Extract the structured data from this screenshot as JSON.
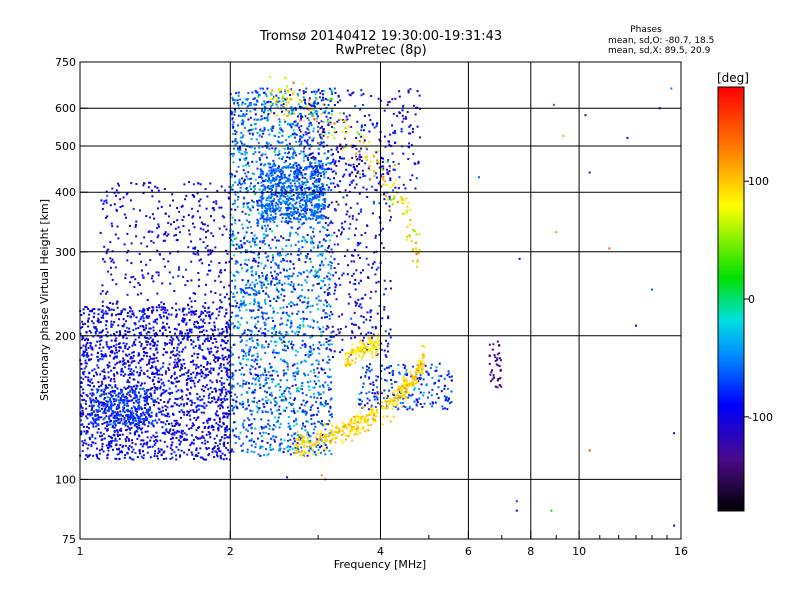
{
  "chart_data": {
    "type": "scatter",
    "title": "Tromsø 20140412 19:30:00-19:31:43",
    "subtitle": "RwPretec (8p)",
    "stats": {
      "heading": "Phases",
      "line1": "mean, sd,O: -80.7, 18.5",
      "line2": "mean, sd,X: 89.5, 20.9"
    },
    "xlabel": "Frequency [MHz]",
    "ylabel": "Stationary phase Virtual Height [km]",
    "x_scale": "log",
    "y_scale": "log",
    "xlim": [
      1,
      16
    ],
    "ylim": [
      75,
      750
    ],
    "xticks": [
      1,
      2,
      4,
      6,
      8,
      10,
      16
    ],
    "xtick_labels": [
      "1",
      "2",
      "4",
      "6",
      "8",
      "10",
      "16"
    ],
    "yticks": [
      75,
      100,
      200,
      300,
      400,
      500,
      600,
      750
    ],
    "ytick_labels": [
      "75",
      "100",
      "200",
      "300",
      "400",
      "500",
      "600",
      "750"
    ],
    "grid": true,
    "colorbar": {
      "label": "[deg]",
      "min": -180,
      "max": 180,
      "ticks": [
        100,
        0,
        -100
      ],
      "tick_labels": [
        "100",
        "0",
        "-100"
      ]
    },
    "clusters": [
      {
        "fmin": 1.0,
        "fmax": 2.0,
        "hmin": 110,
        "hmax": 230,
        "phase": -95,
        "phase_sd": 12,
        "n": 1900
      },
      {
        "fmin": 1.05,
        "fmax": 1.4,
        "hmin": 130,
        "hmax": 155,
        "phase": -70,
        "phase_sd": 10,
        "n": 250
      },
      {
        "fmin": 1.1,
        "fmax": 2.0,
        "hmin": 225,
        "hmax": 420,
        "phase": -100,
        "phase_sd": 10,
        "n": 350
      },
      {
        "fmin": 2.0,
        "fmax": 3.2,
        "hmin": 112,
        "hmax": 660,
        "phase": -60,
        "phase_sd": 25,
        "n": 2200
      },
      {
        "fmin": 2.3,
        "fmax": 3.1,
        "hmin": 350,
        "hmax": 460,
        "phase": -60,
        "phase_sd": 8,
        "n": 500
      },
      {
        "fmin": 2.7,
        "fmax": 4.8,
        "hmin": 400,
        "hmax": 660,
        "phase": -95,
        "phase_sd": 15,
        "n": 300
      },
      {
        "fmin": 3.1,
        "fmax": 4.2,
        "hmin": 180,
        "hmax": 480,
        "phase": -100,
        "phase_sd": 20,
        "n": 300
      },
      {
        "fmin": 3.6,
        "fmax": 5.6,
        "hmin": 140,
        "hmax": 175,
        "phase": -75,
        "phase_sd": 20,
        "n": 220
      },
      {
        "fmin": 6.6,
        "fmax": 7.0,
        "hmin": 155,
        "hmax": 195,
        "phase": -135,
        "phase_sd": 6,
        "n": 40
      }
    ],
    "x_traces": [
      {
        "x": [
          2.7,
          3.0,
          3.3,
          3.7,
          4.2,
          4.6,
          4.9
        ],
        "y": [
          118,
          120,
          125,
          133,
          145,
          160,
          178
        ],
        "spread": 0.03,
        "phase": 95,
        "phase_sd": 10,
        "n": 400
      },
      {
        "x": [
          3.4,
          3.6,
          3.8,
          4.0
        ],
        "y": [
          175,
          185,
          190,
          192
        ],
        "spread": 0.025,
        "phase": 90,
        "phase_sd": 8,
        "n": 120
      },
      {
        "x": [
          2.4,
          2.7,
          3.2,
          3.8,
          4.4,
          4.8
        ],
        "y": [
          640,
          620,
          560,
          470,
          380,
          300
        ],
        "spread": 0.06,
        "phase": 85,
        "phase_sd": 25,
        "n": 200
      }
    ],
    "outliers": [
      {
        "x": 7.5,
        "y": 90,
        "phase": -70
      },
      {
        "x": 7.5,
        "y": 86,
        "phase": -90
      },
      {
        "x": 8.8,
        "y": 86,
        "phase": 20
      },
      {
        "x": 9.3,
        "y": 525,
        "phase": 110
      },
      {
        "x": 9.0,
        "y": 330,
        "phase": 120
      },
      {
        "x": 10.5,
        "y": 440,
        "phase": -140
      },
      {
        "x": 12.5,
        "y": 520,
        "phase": -100
      },
      {
        "x": 11.5,
        "y": 305,
        "phase": 140
      },
      {
        "x": 14.5,
        "y": 600,
        "phase": -90
      },
      {
        "x": 15.3,
        "y": 660,
        "phase": -50
      },
      {
        "x": 15.5,
        "y": 125,
        "phase": -110
      },
      {
        "x": 14.0,
        "y": 250,
        "phase": -70
      },
      {
        "x": 13.0,
        "y": 210,
        "phase": -90
      },
      {
        "x": 15.5,
        "y": 80,
        "phase": -100
      },
      {
        "x": 10.3,
        "y": 580,
        "phase": -120
      },
      {
        "x": 7.6,
        "y": 290,
        "phase": -110
      },
      {
        "x": 6.3,
        "y": 430,
        "phase": -60
      },
      {
        "x": 10.5,
        "y": 115,
        "phase": 150
      },
      {
        "x": 3.1,
        "y": 100,
        "phase": 150
      },
      {
        "x": 3.05,
        "y": 102,
        "phase": 120
      },
      {
        "x": 2.6,
        "y": 101,
        "phase": -110
      },
      {
        "x": 8.9,
        "y": 610,
        "phase": -60
      }
    ]
  }
}
